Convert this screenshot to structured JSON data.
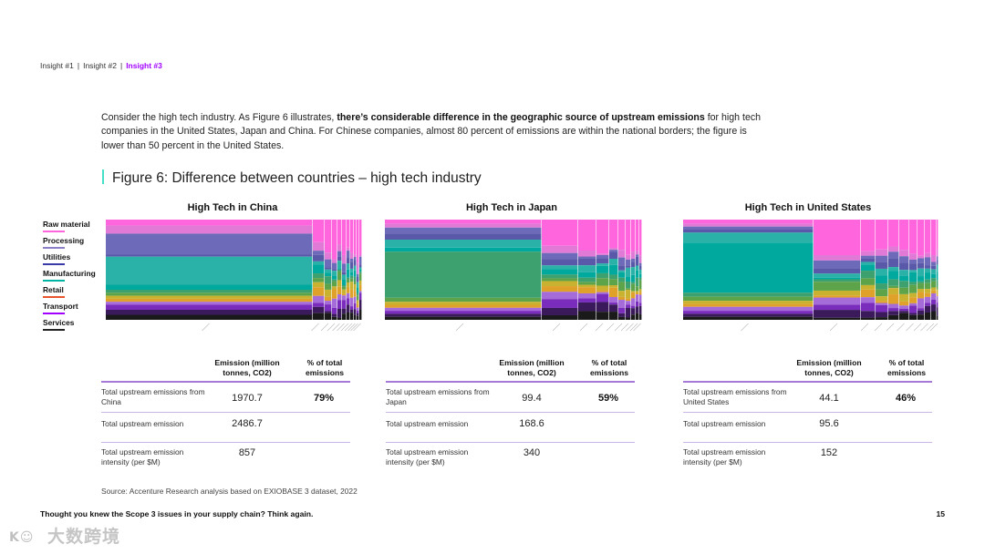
{
  "breadcrumbs": [
    {
      "label": "Insight #1",
      "active": false
    },
    {
      "label": "Insight #2",
      "active": false
    },
    {
      "label": "Insight #3",
      "active": true
    }
  ],
  "intro": {
    "part1": "Consider the high tech industry. As Figure 6 illustrates, ",
    "bold": "there’s considerable difference in the geographic source of upstream emissions",
    "part2": " for high tech companies in the United States, Japan and China. For Chinese companies, almost 80 percent of emissions are within the national borders; the figure is lower than 50 percent in the United States."
  },
  "figure_title": "Figure 6: Difference between countries – high tech industry",
  "legend": [
    {
      "label": "Raw material",
      "color": "#ff66dd"
    },
    {
      "label": "Processing",
      "color": "#8a80c8"
    },
    {
      "label": "Utilities",
      "color": "#3a3aa8"
    },
    {
      "label": "Manufacturing",
      "color": "#00b3a4"
    },
    {
      "label": "Retail",
      "color": "#e8552c"
    },
    {
      "label": "Transport",
      "color": "#a100ff"
    },
    {
      "label": "Services",
      "color": "#222222"
    }
  ],
  "table_headers": {
    "emission": "Emission (million tonnes, CO2)",
    "pct": "% of total emissions"
  },
  "panels": [
    {
      "title": "High Tech in China",
      "rows": [
        {
          "label": "Total upstream emissions from China",
          "emission": "1970.7",
          "pct": "79%"
        },
        {
          "label": "Total upstream emission",
          "emission": "2486.7",
          "pct": ""
        },
        {
          "label": "Total upstream emission intensity (per $M)",
          "emission": "857",
          "pct": ""
        }
      ]
    },
    {
      "title": "High Tech in Japan",
      "rows": [
        {
          "label": "Total upstream emissions from Japan",
          "emission": "99.4",
          "pct": "59%"
        },
        {
          "label": "Total upstream emission",
          "emission": "168.6",
          "pct": ""
        },
        {
          "label": "Total upstream emission intensity (per $M)",
          "emission": "340",
          "pct": ""
        }
      ]
    },
    {
      "title": "High Tech in United States",
      "rows": [
        {
          "label": "Total upstream emissions from United States",
          "emission": "44.1",
          "pct": "46%"
        },
        {
          "label": "Total upstream emission",
          "emission": "95.6",
          "pct": ""
        },
        {
          "label": "Total upstream emission intensity (per $M)",
          "emission": "152",
          "pct": ""
        }
      ]
    }
  ],
  "source": "Source: Accenture Research analysis based on EXIOBASE 3 dataset, 2022",
  "footer": "Thought you knew the Scope 3 issues in your supply chain? Think again.",
  "page_number": "15",
  "watermark": "大数跨境"
}
